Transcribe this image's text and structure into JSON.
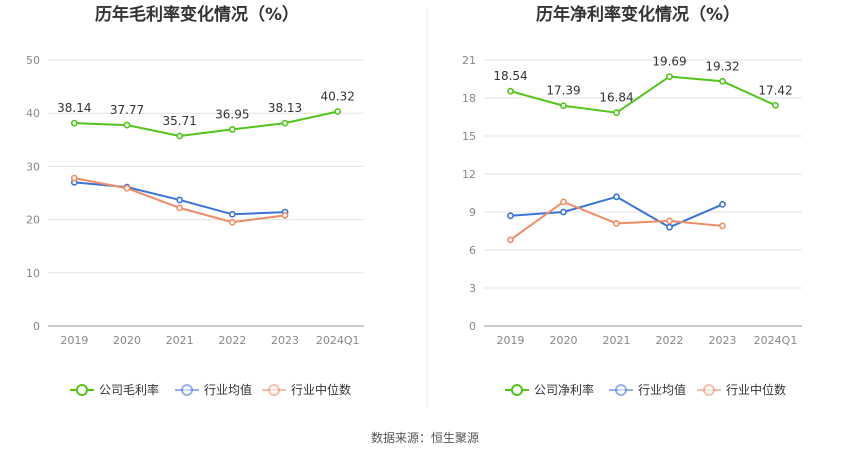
{
  "chart_data": [
    {
      "type": "line",
      "title": "历年毛利率变化情况（%）",
      "categories": [
        "2019",
        "2020",
        "2021",
        "2022",
        "2023",
        "2024Q1"
      ],
      "yticks": [
        "0",
        "10",
        "20",
        "30",
        "40",
        "50"
      ],
      "ylim": [
        0,
        50
      ],
      "series": [
        {
          "name": "公司毛利率",
          "color": "#52c41a",
          "values": [
            38.14,
            37.77,
            35.71,
            36.95,
            38.13,
            40.32
          ],
          "labels": [
            "38.14",
            "37.77",
            "35.71",
            "36.95",
            "38.13",
            "40.32"
          ]
        },
        {
          "name": "行业均值",
          "color": "#3b74d9",
          "values": [
            27.0,
            26.1,
            23.7,
            21.0,
            21.4,
            null
          ]
        },
        {
          "name": "行业中位数",
          "color": "#f08c65",
          "values": [
            27.8,
            25.9,
            22.2,
            19.5,
            20.8,
            null
          ]
        }
      ]
    },
    {
      "type": "line",
      "title": "历年净利率变化情况（%）",
      "categories": [
        "2019",
        "2020",
        "2021",
        "2022",
        "2023",
        "2024Q1"
      ],
      "yticks": [
        "0",
        "3",
        "6",
        "9",
        "12",
        "15",
        "18",
        "21"
      ],
      "ylim": [
        0,
        21
      ],
      "series": [
        {
          "name": "公司净利率",
          "color": "#52c41a",
          "values": [
            18.54,
            17.39,
            16.84,
            19.69,
            19.32,
            17.42
          ],
          "labels": [
            "18.54",
            "17.39",
            "16.84",
            "19.69",
            "19.32",
            "17.42"
          ]
        },
        {
          "name": "行业均值",
          "color": "#3b74d9",
          "values": [
            8.7,
            9.0,
            10.2,
            7.8,
            9.6,
            null
          ]
        },
        {
          "name": "行业中位数",
          "color": "#f08c65",
          "values": [
            6.8,
            9.8,
            8.1,
            8.3,
            7.9,
            null
          ]
        }
      ]
    }
  ],
  "footer": {
    "source": "数据来源：恒生聚源"
  }
}
